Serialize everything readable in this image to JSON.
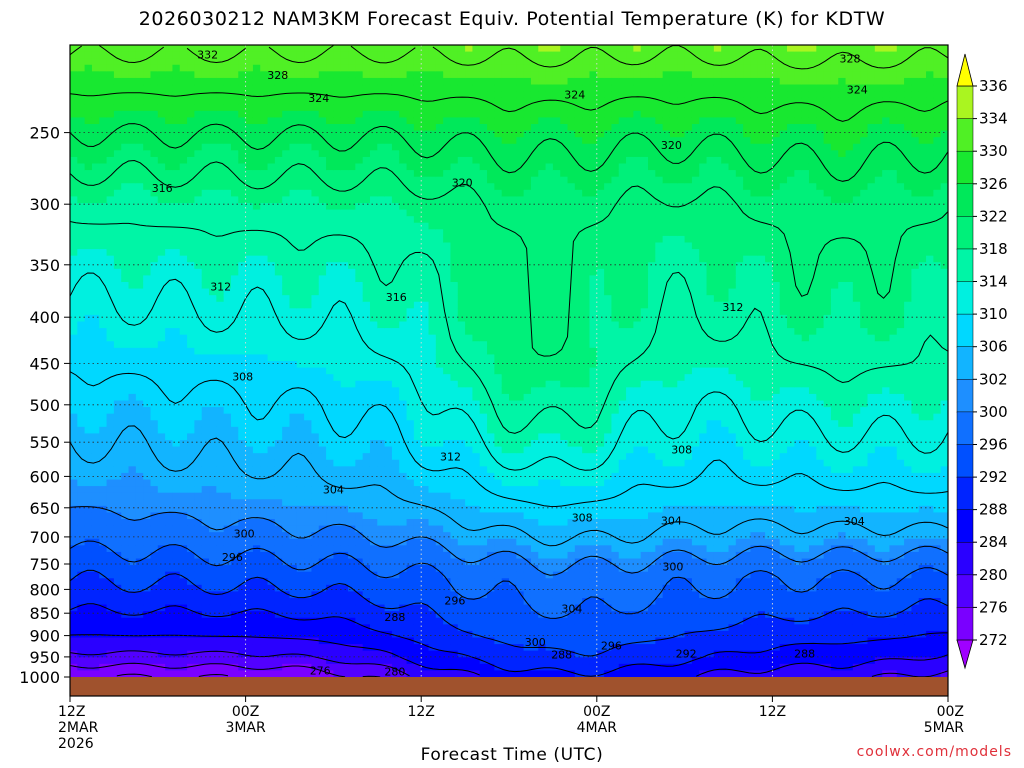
{
  "chart_data": {
    "type": "heatmap",
    "title": "2026030212 NAM3KM Forecast Equiv. Potential Temperature (K) for KDTW",
    "xlabel": "Forecast Time (UTC)",
    "ylabel": "",
    "y_scale": "log-pressure (hPa)",
    "x_ticks": [
      {
        "hour": 0,
        "lines": [
          "12Z",
          "2MAR",
          "2026"
        ]
      },
      {
        "hour": 12,
        "lines": [
          "00Z",
          "3MAR"
        ]
      },
      {
        "hour": 24,
        "lines": [
          "12Z"
        ]
      },
      {
        "hour": 36,
        "lines": [
          "00Z",
          "4MAR"
        ]
      },
      {
        "hour": 48,
        "lines": [
          "12Z"
        ]
      },
      {
        "hour": 60,
        "lines": [
          "00Z",
          "5MAR"
        ]
      }
    ],
    "xlim": [
      0,
      60
    ],
    "y_ticks": [
      250,
      300,
      350,
      400,
      450,
      500,
      550,
      600,
      650,
      700,
      750,
      800,
      850,
      900,
      950,
      1000
    ],
    "ylim": [
      200,
      1000
    ],
    "colorbar": {
      "levels": [
        272,
        276,
        280,
        284,
        288,
        292,
        296,
        300,
        302,
        306,
        310,
        314,
        318,
        322,
        326,
        330,
        334,
        336
      ],
      "colors": [
        "#a000ff",
        "#7a00ff",
        "#5200ff",
        "#2a00ff",
        "#0000ff",
        "#0024ff",
        "#0050ff",
        "#1070ff",
        "#1e8fff",
        "#12b4ff",
        "#00d8ff",
        "#00f0e0",
        "#00f5a6",
        "#00f07a",
        "#00e85a",
        "#18e830",
        "#50f025",
        "#aaf520",
        "#ffff00"
      ]
    },
    "contour_labels": [
      {
        "value": "332",
        "hour": 9.4,
        "p": 205
      },
      {
        "value": "328",
        "hour": 14.2,
        "p": 216
      },
      {
        "value": "324",
        "hour": 17.0,
        "p": 229
      },
      {
        "value": "320",
        "hour": 26.8,
        "p": 284
      },
      {
        "value": "316",
        "hour": 6.3,
        "p": 288
      },
      {
        "value": "312",
        "hour": 10.3,
        "p": 370
      },
      {
        "value": "316",
        "hour": 22.3,
        "p": 380
      },
      {
        "value": "308",
        "hour": 11.8,
        "p": 465
      },
      {
        "value": "312",
        "hour": 26.0,
        "p": 570
      },
      {
        "value": "304",
        "hour": 18.0,
        "p": 620
      },
      {
        "value": "300",
        "hour": 11.9,
        "p": 694
      },
      {
        "value": "296",
        "hour": 11.1,
        "p": 737
      },
      {
        "value": "296",
        "hour": 26.3,
        "p": 823
      },
      {
        "value": "288",
        "hour": 22.2,
        "p": 858
      },
      {
        "value": "304",
        "hour": 34.3,
        "p": 840
      },
      {
        "value": "300",
        "hour": 31.8,
        "p": 915
      },
      {
        "value": "296",
        "hour": 37.0,
        "p": 923
      },
      {
        "value": "288",
        "hour": 33.6,
        "p": 944
      },
      {
        "value": "292",
        "hour": 42.1,
        "p": 942
      },
      {
        "value": "288",
        "hour": 50.2,
        "p": 942
      },
      {
        "value": "276",
        "hour": 17.1,
        "p": 984
      },
      {
        "value": "280",
        "hour": 22.2,
        "p": 986
      },
      {
        "value": "308",
        "hour": 35.0,
        "p": 666
      },
      {
        "value": "304",
        "hour": 41.1,
        "p": 671
      },
      {
        "value": "300",
        "hour": 41.2,
        "p": 755
      },
      {
        "value": "308",
        "hour": 41.8,
        "p": 560
      },
      {
        "value": "312",
        "hour": 45.3,
        "p": 390
      },
      {
        "value": "320",
        "hour": 41.1,
        "p": 258
      },
      {
        "value": "324",
        "hour": 34.5,
        "p": 227
      },
      {
        "value": "324",
        "hour": 53.8,
        "p": 224
      },
      {
        "value": "328",
        "hour": 53.3,
        "p": 207
      },
      {
        "value": "304",
        "hour": 53.6,
        "p": 672
      }
    ],
    "grid": true,
    "legend": "colorbar-right",
    "surface_color": "#a0522d"
  },
  "footer": {
    "xlabel": "Forecast Time (UTC)",
    "credit": "coolwx.com/models"
  }
}
